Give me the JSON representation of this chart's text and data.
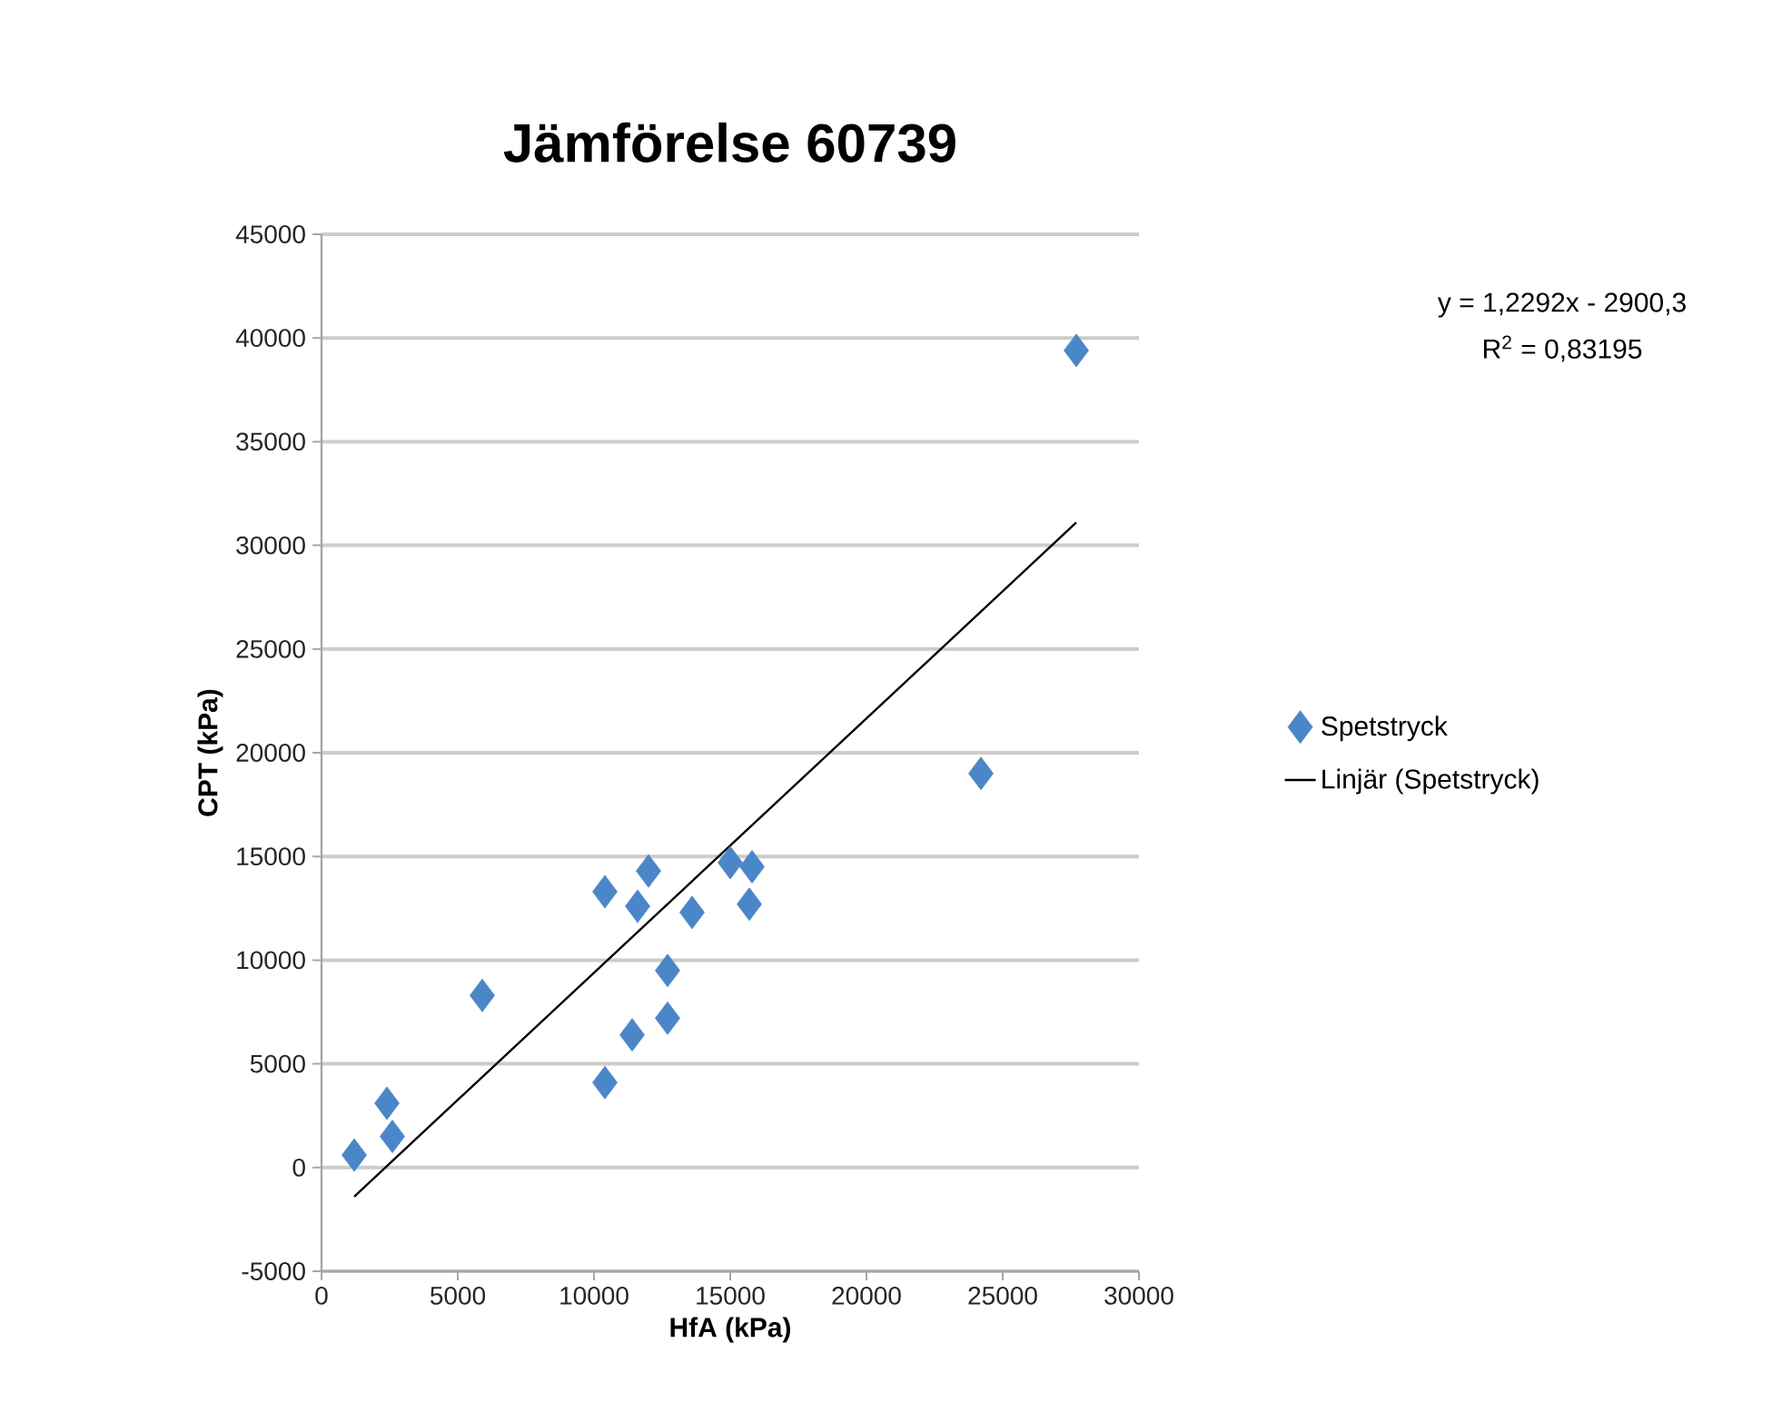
{
  "chart_data": {
    "type": "scatter",
    "title": "Jämförelse 60739",
    "xlabel": "HfA (kPa)",
    "ylabel": "CPT (kPa)",
    "annotations": [
      "y = 1,2292x - 2900,3",
      "R$^{2}$ = 0,83195"
    ],
    "xlim": [
      0,
      30000
    ],
    "ylim": [
      -5000,
      45000
    ],
    "xticks": [
      0,
      5000,
      10000,
      15000,
      20000,
      25000,
      30000
    ],
    "yticks": [
      -5000,
      0,
      5000,
      10000,
      15000,
      20000,
      25000,
      30000,
      35000,
      40000,
      45000
    ],
    "grid": "y",
    "legend": "right",
    "series": [
      {
        "name": "Spetstryck",
        "marker": "diamond",
        "color": "#4a86c8",
        "x": [
          1200,
          2400,
          2600,
          5900,
          10400,
          12000,
          11600,
          13600,
          12700,
          12700,
          11400,
          10400,
          15000,
          15800,
          15700,
          24200,
          27700
        ],
        "values": [
          600,
          3100,
          1500,
          8300,
          13300,
          14300,
          12600,
          12300,
          9500,
          7200,
          6400,
          4100,
          14700,
          14500,
          12700,
          19000,
          39400
        ]
      },
      {
        "name": "Linjär (Spetstryck)",
        "type": "line",
        "marker": "none",
        "line_style": "solid",
        "color": "#000000",
        "x": [
          1200,
          27700
        ],
        "values": [
          -1400,
          31100
        ]
      }
    ]
  }
}
